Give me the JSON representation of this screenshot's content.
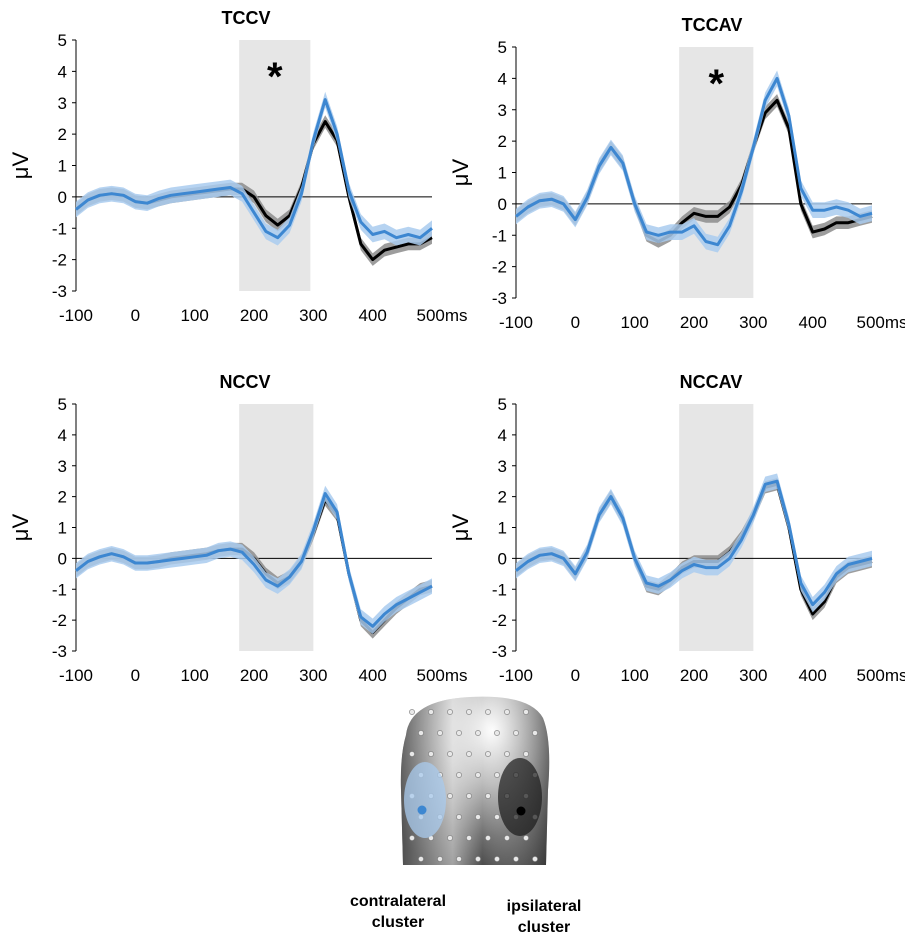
{
  "colors": {
    "contralateral": "#3d87d1",
    "contralateral_band": "#a9cbee",
    "ipsilateral": "#000000",
    "ipsilateral_band": "#8c8c8c",
    "window_shade": "#e6e6e6"
  },
  "chart_data": [
    {
      "type": "line",
      "title": "TCCV",
      "ylabel": "μV",
      "xlabel_suffix": "ms",
      "x_ticks": [
        "-100",
        "0",
        "100",
        "200",
        "300",
        "400",
        "500ms"
      ],
      "y_ticks": [
        "5",
        "4",
        "3",
        "2",
        "1",
        "0",
        "-1",
        "-2",
        "-3"
      ],
      "xlim": [
        -100,
        500
      ],
      "ylim": [
        -3,
        5
      ],
      "shaded_window": [
        175,
        295
      ],
      "significance": "*",
      "series": [
        {
          "key": "ipsilateral",
          "x": [
            -100,
            -80,
            -60,
            -40,
            -20,
            0,
            20,
            40,
            60,
            80,
            100,
            120,
            140,
            160,
            180,
            200,
            220,
            240,
            260,
            280,
            300,
            320,
            340,
            360,
            380,
            400,
            420,
            440,
            460,
            480,
            500
          ],
          "y": [
            -0.4,
            -0.1,
            0.05,
            0.1,
            0.05,
            -0.15,
            -0.2,
            -0.1,
            0.0,
            0.05,
            0.1,
            0.15,
            0.2,
            0.25,
            0.25,
            0.0,
            -0.6,
            -0.9,
            -0.6,
            0.3,
            1.7,
            2.4,
            1.8,
            0.0,
            -1.5,
            -2.0,
            -1.7,
            -1.6,
            -1.5,
            -1.5,
            -1.3
          ],
          "band": 0.2
        },
        {
          "key": "contralateral",
          "x": [
            -100,
            -80,
            -60,
            -40,
            -20,
            0,
            20,
            40,
            60,
            80,
            100,
            120,
            140,
            160,
            180,
            200,
            220,
            240,
            260,
            280,
            300,
            320,
            340,
            360,
            380,
            400,
            420,
            440,
            460,
            480,
            500
          ],
          "y": [
            -0.4,
            -0.1,
            0.05,
            0.1,
            0.05,
            -0.15,
            -0.2,
            -0.05,
            0.05,
            0.1,
            0.15,
            0.2,
            0.25,
            0.3,
            0.1,
            -0.5,
            -1.1,
            -1.3,
            -0.9,
            0.1,
            1.8,
            3.1,
            2.0,
            0.2,
            -0.8,
            -1.2,
            -1.1,
            -1.3,
            -1.2,
            -1.3,
            -1.0
          ],
          "band": 0.25
        }
      ]
    },
    {
      "type": "line",
      "title": "TCCAV",
      "ylabel": "μV",
      "xlabel_suffix": "ms",
      "x_ticks": [
        "-100",
        "0",
        "100",
        "200",
        "300",
        "400",
        "500ms"
      ],
      "y_ticks": [
        "5",
        "4",
        "3",
        "2",
        "1",
        "0",
        "-1",
        "-2",
        "-3"
      ],
      "xlim": [
        -100,
        500
      ],
      "ylim": [
        -3,
        5
      ],
      "shaded_window": [
        175,
        300
      ],
      "significance": "*",
      "series": [
        {
          "key": "ipsilateral",
          "x": [
            -100,
            -80,
            -60,
            -40,
            -20,
            0,
            20,
            40,
            60,
            80,
            100,
            120,
            140,
            160,
            180,
            200,
            220,
            240,
            260,
            280,
            300,
            320,
            340,
            360,
            380,
            400,
            420,
            440,
            460,
            480,
            500
          ],
          "y": [
            -0.4,
            -0.1,
            0.1,
            0.15,
            0.0,
            -0.5,
            0.2,
            1.2,
            1.8,
            1.3,
            0.0,
            -1.0,
            -1.2,
            -1.0,
            -0.6,
            -0.3,
            -0.4,
            -0.4,
            -0.1,
            0.6,
            1.8,
            2.9,
            3.3,
            2.4,
            0.0,
            -0.9,
            -0.8,
            -0.6,
            -0.6,
            -0.5,
            -0.4
          ],
          "band": 0.2
        },
        {
          "key": "contralateral",
          "x": [
            -100,
            -80,
            -60,
            -40,
            -20,
            0,
            20,
            40,
            60,
            80,
            100,
            120,
            140,
            160,
            180,
            200,
            220,
            240,
            260,
            280,
            300,
            320,
            340,
            360,
            380,
            400,
            420,
            440,
            460,
            480,
            500
          ],
          "y": [
            -0.4,
            -0.1,
            0.1,
            0.15,
            0.0,
            -0.5,
            0.2,
            1.2,
            1.8,
            1.3,
            0.0,
            -0.9,
            -1.0,
            -0.9,
            -0.9,
            -0.7,
            -1.2,
            -1.3,
            -0.7,
            0.4,
            1.8,
            3.3,
            4.0,
            2.8,
            0.5,
            -0.2,
            -0.2,
            -0.1,
            -0.2,
            -0.4,
            -0.3
          ],
          "band": 0.25
        }
      ]
    },
    {
      "type": "line",
      "title": "NCCV",
      "ylabel": "μV",
      "xlabel_suffix": "ms",
      "x_ticks": [
        "-100",
        "0",
        "100",
        "200",
        "300",
        "400",
        "500ms"
      ],
      "y_ticks": [
        "5",
        "4",
        "3",
        "2",
        "1",
        "0",
        "-1",
        "-2",
        "-3"
      ],
      "xlim": [
        -100,
        500
      ],
      "ylim": [
        -3,
        5
      ],
      "shaded_window": [
        175,
        300
      ],
      "series": [
        {
          "key": "ipsilateral",
          "x": [
            -100,
            -80,
            -60,
            -40,
            -20,
            0,
            20,
            40,
            60,
            80,
            100,
            120,
            140,
            160,
            180,
            200,
            220,
            240,
            260,
            280,
            300,
            320,
            340,
            360,
            380,
            400,
            420,
            440,
            460,
            480,
            500
          ],
          "y": [
            -0.4,
            -0.1,
            0.05,
            0.15,
            0.05,
            -0.15,
            -0.15,
            -0.1,
            0.0,
            0.05,
            0.1,
            0.15,
            0.25,
            0.3,
            0.3,
            0.0,
            -0.5,
            -0.8,
            -0.6,
            -0.1,
            0.8,
            1.9,
            1.4,
            -0.5,
            -2.0,
            -2.4,
            -2.0,
            -1.6,
            -1.3,
            -1.0,
            -0.9
          ],
          "band": 0.2
        },
        {
          "key": "contralateral",
          "x": [
            -100,
            -80,
            -60,
            -40,
            -20,
            0,
            20,
            40,
            60,
            80,
            100,
            120,
            140,
            160,
            180,
            200,
            220,
            240,
            260,
            280,
            300,
            320,
            340,
            360,
            380,
            400,
            420,
            440,
            460,
            480,
            500
          ],
          "y": [
            -0.4,
            -0.1,
            0.05,
            0.15,
            0.05,
            -0.15,
            -0.15,
            -0.1,
            -0.05,
            0.0,
            0.05,
            0.1,
            0.25,
            0.3,
            0.2,
            -0.2,
            -0.7,
            -0.9,
            -0.6,
            -0.1,
            0.9,
            2.1,
            1.5,
            -0.5,
            -1.9,
            -2.2,
            -1.8,
            -1.5,
            -1.3,
            -1.1,
            -0.9
          ],
          "band": 0.25
        }
      ]
    },
    {
      "type": "line",
      "title": "NCCAV",
      "ylabel": "μV",
      "xlabel_suffix": "ms",
      "x_ticks": [
        "-100",
        "0",
        "100",
        "200",
        "300",
        "400",
        "500ms"
      ],
      "y_ticks": [
        "5",
        "4",
        "3",
        "2",
        "1",
        "0",
        "-1",
        "-2",
        "-3"
      ],
      "xlim": [
        -100,
        500
      ],
      "ylim": [
        -3,
        5
      ],
      "shaded_window": [
        175,
        300
      ],
      "series": [
        {
          "key": "ipsilateral",
          "x": [
            -100,
            -80,
            -60,
            -40,
            -20,
            0,
            20,
            40,
            60,
            80,
            100,
            120,
            140,
            160,
            180,
            200,
            220,
            240,
            260,
            280,
            300,
            320,
            340,
            360,
            380,
            400,
            420,
            440,
            460,
            480,
            500
          ],
          "y": [
            -0.4,
            -0.1,
            0.1,
            0.15,
            0.0,
            -0.5,
            0.2,
            1.4,
            2.0,
            1.3,
            0.0,
            -0.9,
            -1.0,
            -0.7,
            -0.3,
            -0.1,
            -0.1,
            -0.1,
            0.2,
            0.7,
            1.4,
            2.3,
            2.4,
            1.0,
            -1.0,
            -1.8,
            -1.4,
            -0.6,
            -0.3,
            -0.2,
            -0.1
          ],
          "band": 0.2
        },
        {
          "key": "contralateral",
          "x": [
            -100,
            -80,
            -60,
            -40,
            -20,
            0,
            20,
            40,
            60,
            80,
            100,
            120,
            140,
            160,
            180,
            200,
            220,
            240,
            260,
            280,
            300,
            320,
            340,
            360,
            380,
            400,
            420,
            440,
            460,
            480,
            500
          ],
          "y": [
            -0.4,
            -0.1,
            0.1,
            0.15,
            0.0,
            -0.5,
            0.2,
            1.4,
            2.0,
            1.3,
            0.0,
            -0.8,
            -0.9,
            -0.7,
            -0.4,
            -0.2,
            -0.3,
            -0.3,
            0.0,
            0.6,
            1.4,
            2.4,
            2.5,
            1.1,
            -0.8,
            -1.5,
            -1.1,
            -0.5,
            -0.2,
            -0.1,
            0.0
          ],
          "band": 0.25
        }
      ]
    }
  ],
  "legend": {
    "contralateral_label": "contralateral cluster",
    "ipsilateral_label": "ipsilateral cluster"
  }
}
